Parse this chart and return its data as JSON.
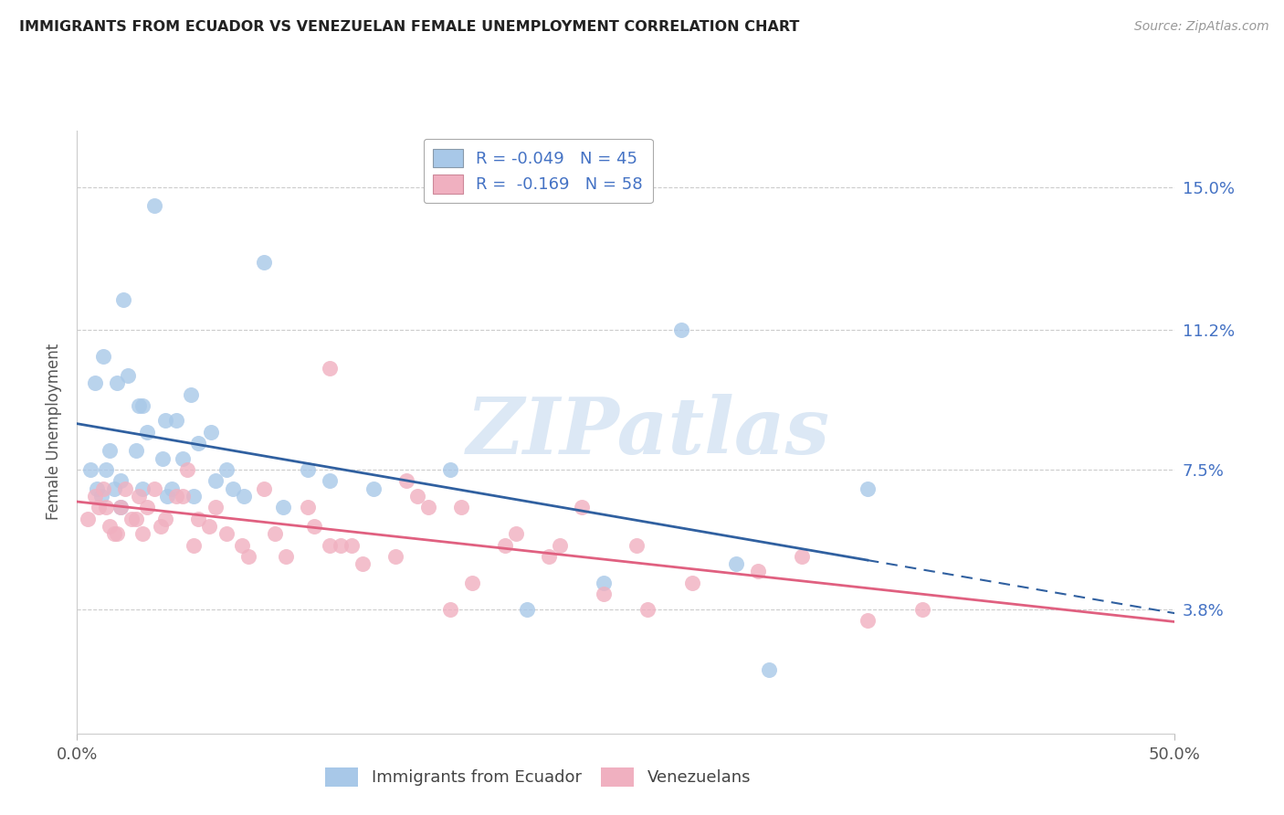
{
  "title": "IMMIGRANTS FROM ECUADOR VS VENEZUELAN FEMALE UNEMPLOYMENT CORRELATION CHART",
  "source": "Source: ZipAtlas.com",
  "ylabel": "Female Unemployment",
  "ytick_vals": [
    3.8,
    7.5,
    11.2,
    15.0
  ],
  "ytick_labels": [
    "3.8%",
    "7.5%",
    "11.2%",
    "15.0%"
  ],
  "xtick_vals": [
    0.0,
    50.0
  ],
  "xtick_labels": [
    "0.0%",
    "50.0%"
  ],
  "xmin": 0.0,
  "xmax": 50.0,
  "ymin": 0.5,
  "ymax": 16.5,
  "blue_r": "-0.049",
  "blue_n": "45",
  "pink_r": "-0.169",
  "pink_n": "58",
  "blue_scatter_x": [
    3.5,
    1.2,
    0.8,
    2.1,
    3.0,
    4.5,
    5.2,
    6.1,
    1.8,
    2.3,
    2.8,
    4.0,
    0.6,
    1.5,
    4.8,
    6.8,
    8.5,
    10.5,
    2.0,
    1.7,
    3.2,
    3.9,
    5.5,
    0.9,
    1.3,
    2.7,
    4.3,
    6.3,
    7.6,
    9.4,
    1.1,
    2.0,
    3.0,
    4.1,
    5.3,
    7.1,
    11.5,
    13.5,
    17.0,
    20.5,
    24.0,
    30.0,
    31.5,
    36.0,
    27.5
  ],
  "blue_scatter_y": [
    14.5,
    10.5,
    9.8,
    12.0,
    9.2,
    8.8,
    9.5,
    8.5,
    9.8,
    10.0,
    9.2,
    8.8,
    7.5,
    8.0,
    7.8,
    7.5,
    13.0,
    7.5,
    7.2,
    7.0,
    8.5,
    7.8,
    8.2,
    7.0,
    7.5,
    8.0,
    7.0,
    7.2,
    6.8,
    6.5,
    6.8,
    6.5,
    7.0,
    6.8,
    6.8,
    7.0,
    7.2,
    7.0,
    7.5,
    3.8,
    4.5,
    5.0,
    2.2,
    7.0,
    11.2
  ],
  "pink_scatter_x": [
    0.5,
    0.8,
    1.0,
    1.2,
    1.5,
    1.8,
    2.0,
    2.5,
    2.8,
    3.2,
    3.5,
    4.0,
    4.5,
    5.0,
    5.5,
    6.0,
    6.8,
    7.5,
    8.5,
    9.5,
    10.5,
    11.5,
    13.0,
    14.5,
    16.0,
    18.0,
    20.0,
    22.0,
    24.0,
    26.0,
    28.0,
    31.0,
    33.0,
    36.0,
    38.5,
    1.3,
    1.7,
    2.2,
    2.7,
    3.0,
    3.8,
    4.8,
    5.3,
    6.3,
    7.8,
    9.0,
    10.8,
    12.0,
    15.0,
    17.5,
    19.5,
    21.5,
    23.0,
    25.5,
    11.5,
    12.5,
    15.5,
    17.0
  ],
  "pink_scatter_y": [
    6.2,
    6.8,
    6.5,
    7.0,
    6.0,
    5.8,
    6.5,
    6.2,
    6.8,
    6.5,
    7.0,
    6.2,
    6.8,
    7.5,
    6.2,
    6.0,
    5.8,
    5.5,
    7.0,
    5.2,
    6.5,
    5.5,
    5.0,
    5.2,
    6.5,
    4.5,
    5.8,
    5.5,
    4.2,
    3.8,
    4.5,
    4.8,
    5.2,
    3.5,
    3.8,
    6.5,
    5.8,
    7.0,
    6.2,
    5.8,
    6.0,
    6.8,
    5.5,
    6.5,
    5.2,
    5.8,
    6.0,
    5.5,
    7.2,
    6.5,
    5.5,
    5.2,
    6.5,
    5.5,
    10.2,
    5.5,
    6.8,
    3.8
  ],
  "blue_dot_color": "#a8c8e8",
  "pink_dot_color": "#f0b0c0",
  "blue_line_color": "#3060a0",
  "pink_line_color": "#e06080",
  "legend_top_blue_color": "#a8c8e8",
  "legend_top_pink_color": "#f0b0c0",
  "legend_bottom_blue_color": "#a8c8e8",
  "legend_bottom_pink_color": "#f0b0c0",
  "grid_color": "#cccccc",
  "right_axis_color": "#4472c4",
  "watermark_text": "ZIPatlas",
  "watermark_color": "#dce8f5",
  "background_color": "#ffffff",
  "title_color": "#222222",
  "source_color": "#999999",
  "label_color": "#555555",
  "bottom_legend_color": "#444444"
}
